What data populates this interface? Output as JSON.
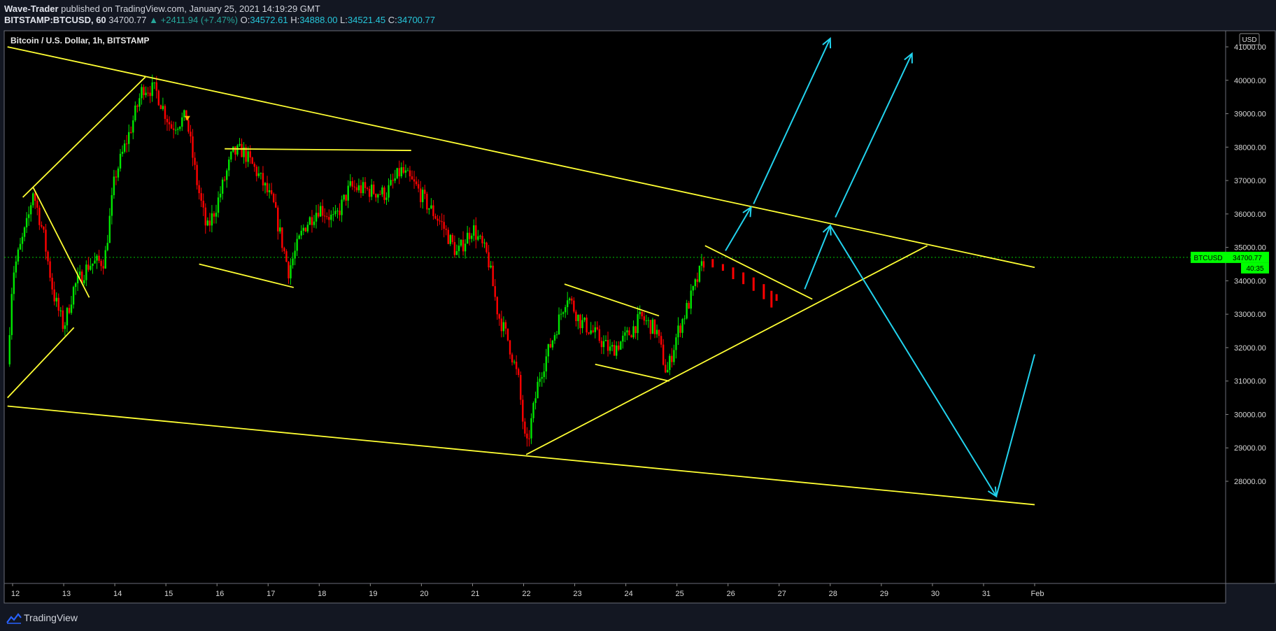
{
  "header": {
    "author": "Wave-Trader",
    "published_text": " published on TradingView.com, January 25, 2021 14:19:29 GMT",
    "symbol": "BITSTAMP:BTCUSD, 60",
    "last": "34700.77",
    "change": "+2411.94 (+7.47%)",
    "o_label": "O:",
    "o_value": "34572.61",
    "h_label": "H:",
    "h_value": "34888.00",
    "l_label": "L:",
    "l_value": "34521.45",
    "c_label": "C:",
    "c_value": "34700.77"
  },
  "footer": {
    "brand": "TradingView"
  },
  "colors": {
    "background": "#000000",
    "up": "#00e600",
    "down": "#ff0000",
    "trendline": "#ffff33",
    "projection": "#22d3ee",
    "price_tag": "#00ff00"
  },
  "chart_data": {
    "type": "candlestick",
    "title": "Bitcoin / U.S. Dollar, 1h, BITSTAMP",
    "currency_label": "USD",
    "last_price_label": "BTCUSD",
    "last_price": 34700.77,
    "last_price_display": "34700.77",
    "countdown": "40:35",
    "x_ticks": [
      "12",
      "13",
      "14",
      "15",
      "16",
      "17",
      "18",
      "19",
      "20",
      "21",
      "22",
      "23",
      "24",
      "25",
      "26",
      "27",
      "28",
      "29",
      "30",
      "31",
      "Feb"
    ],
    "y_ticks": [
      "41000.00",
      "40000.00",
      "39000.00",
      "38000.00",
      "37000.00",
      "36000.00",
      "35000.00",
      "34000.00",
      "33000.00",
      "32000.00",
      "31000.00",
      "30000.00",
      "29000.00",
      "28000.00"
    ],
    "y_tick_values": [
      41000,
      40000,
      39000,
      38000,
      37000,
      36000,
      35000,
      34000,
      33000,
      32000,
      31000,
      30000,
      29000,
      28000
    ],
    "ylim": [
      27350,
      42500
    ],
    "xlim_days": [
      11.9,
      32.0
    ],
    "price_path": [
      [
        11.9,
        31500
      ],
      [
        12.0,
        34200
      ],
      [
        12.3,
        35800
      ],
      [
        12.4,
        36700
      ],
      [
        12.6,
        35400
      ],
      [
        12.8,
        33600
      ],
      [
        13.0,
        32600
      ],
      [
        13.2,
        33800
      ],
      [
        13.5,
        34500
      ],
      [
        13.8,
        34600
      ],
      [
        14.0,
        37100
      ],
      [
        14.3,
        38500
      ],
      [
        14.55,
        39800
      ],
      [
        14.8,
        39700
      ],
      [
        15.1,
        38600
      ],
      [
        15.4,
        38900
      ],
      [
        15.6,
        37000
      ],
      [
        15.8,
        35500
      ],
      [
        16.0,
        36300
      ],
      [
        16.3,
        37800
      ],
      [
        16.5,
        37900
      ],
      [
        16.8,
        37200
      ],
      [
        17.1,
        36300
      ],
      [
        17.4,
        34300
      ],
      [
        17.7,
        35600
      ],
      [
        18.0,
        36200
      ],
      [
        18.3,
        35800
      ],
      [
        18.6,
        36800
      ],
      [
        19.0,
        36700
      ],
      [
        19.3,
        36600
      ],
      [
        19.6,
        37300
      ],
      [
        19.9,
        36800
      ],
      [
        20.1,
        36300
      ],
      [
        20.4,
        35700
      ],
      [
        20.7,
        34800
      ],
      [
        21.0,
        35600
      ],
      [
        21.3,
        34700
      ],
      [
        21.5,
        33000
      ],
      [
        21.7,
        32200
      ],
      [
        21.9,
        31000
      ],
      [
        22.05,
        28900
      ],
      [
        22.3,
        31100
      ],
      [
        22.6,
        32400
      ],
      [
        22.85,
        33600
      ],
      [
        23.1,
        32800
      ],
      [
        23.4,
        32400
      ],
      [
        23.7,
        31900
      ],
      [
        24.0,
        32300
      ],
      [
        24.3,
        32900
      ],
      [
        24.6,
        32500
      ],
      [
        24.8,
        31200
      ],
      [
        25.0,
        32400
      ],
      [
        25.3,
        33600
      ],
      [
        25.55,
        34700
      ]
    ],
    "projection_bars": [
      [
        25.7,
        34650,
        34400
      ],
      [
        25.9,
        34500,
        34300
      ],
      [
        26.1,
        34400,
        34050
      ],
      [
        26.3,
        34250,
        33900
      ],
      [
        26.5,
        34100,
        33700
      ],
      [
        26.7,
        33900,
        33450
      ],
      [
        26.85,
        33700,
        33200
      ],
      [
        26.95,
        33600,
        33400
      ]
    ],
    "pattern_lines": [
      {
        "name": "upper-wedge-line",
        "color": "trendline",
        "points": [
          [
            11.9,
            41000
          ],
          [
            32.0,
            34400
          ]
        ]
      },
      {
        "name": "lower-wedge-line",
        "color": "trendline",
        "points": [
          [
            11.9,
            30250
          ],
          [
            32.0,
            27300
          ]
        ]
      },
      {
        "name": "rise-to-top",
        "color": "trendline",
        "points": [
          [
            12.2,
            36500
          ],
          [
            14.6,
            40100
          ]
        ]
      },
      {
        "name": "left-flag-upper",
        "color": "trendline",
        "points": [
          [
            12.4,
            36800
          ],
          [
            13.5,
            33500
          ]
        ]
      },
      {
        "name": "left-flag-lower",
        "color": "trendline",
        "points": [
          [
            11.9,
            30500
          ],
          [
            13.2,
            32600
          ]
        ]
      },
      {
        "name": "resistance-38k",
        "color": "trendline",
        "points": [
          [
            16.15,
            37950
          ],
          [
            19.8,
            37900
          ]
        ]
      },
      {
        "name": "mid-flag-lower",
        "color": "trendline",
        "points": [
          [
            15.65,
            34500
          ],
          [
            17.5,
            33800
          ]
        ]
      },
      {
        "name": "rising-support",
        "color": "trendline",
        "points": [
          [
            22.05,
            28800
          ],
          [
            29.9,
            35050
          ]
        ]
      },
      {
        "name": "small-flag-upper",
        "color": "trendline",
        "points": [
          [
            22.8,
            33900
          ],
          [
            24.65,
            32950
          ]
        ]
      },
      {
        "name": "small-flag-lower",
        "color": "trendline",
        "points": [
          [
            23.4,
            31500
          ],
          [
            24.85,
            31000
          ]
        ]
      },
      {
        "name": "current-flag-line",
        "color": "trendline",
        "points": [
          [
            25.55,
            35050
          ],
          [
            27.65,
            33450
          ]
        ]
      }
    ],
    "projection_arrows": [
      {
        "points": [
          [
            25.95,
            34900
          ],
          [
            26.45,
            36200
          ]
        ],
        "head": true
      },
      {
        "points": [
          [
            26.5,
            36300
          ],
          [
            28.0,
            41250
          ]
        ],
        "head": true
      },
      {
        "points": [
          [
            27.5,
            33750
          ],
          [
            28.0,
            35650
          ]
        ],
        "head": true
      },
      {
        "points": [
          [
            28.1,
            35900
          ],
          [
            29.6,
            40800
          ]
        ],
        "head": true
      },
      {
        "points": [
          [
            28.0,
            35650
          ],
          [
            31.25,
            27550
          ]
        ],
        "head": true
      },
      {
        "points": [
          [
            31.25,
            27550
          ],
          [
            32.0,
            31800
          ]
        ],
        "head": false
      }
    ],
    "markers": [
      {
        "type": "sell-flag",
        "x": 15.42,
        "y": 38850
      }
    ]
  }
}
